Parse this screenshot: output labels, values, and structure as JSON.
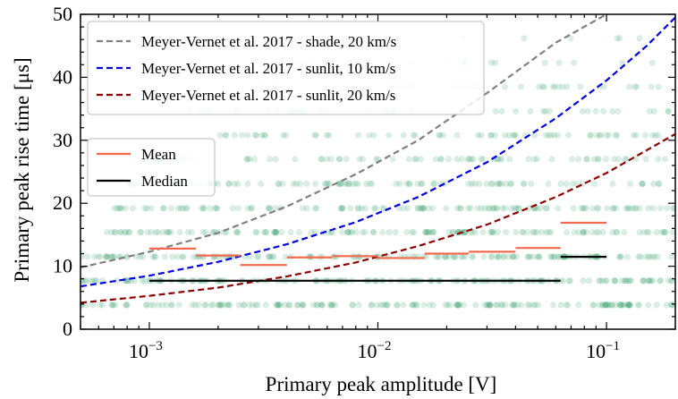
{
  "chart_data": {
    "type": "scatter",
    "xlabel": "Primary peak amplitude [V]",
    "ylabel": "Primary peak rise time [μs]",
    "xscale": "log",
    "xlim": [
      0.0005,
      0.2
    ],
    "ylim": [
      0,
      50
    ],
    "x_ticks": [
      {
        "value": 0.001,
        "base": "10",
        "exp": "−3"
      },
      {
        "value": 0.01,
        "base": "10",
        "exp": "−2"
      },
      {
        "value": 0.1,
        "base": "10",
        "exp": "−1"
      }
    ],
    "y_ticks": [
      {
        "value": 0,
        "label": "0"
      },
      {
        "value": 10,
        "label": "10"
      },
      {
        "value": 20,
        "label": "20"
      },
      {
        "value": 30,
        "label": "30"
      },
      {
        "value": 40,
        "label": "40"
      },
      {
        "value": 50,
        "label": "50"
      }
    ],
    "scatter": {
      "color": "#3aa370",
      "opacity": 0.18,
      "rows": [
        {
          "y": 3.85,
          "from": 0.0005,
          "to": 0.2,
          "density": 1.0
        },
        {
          "y": 7.7,
          "from": 0.0005,
          "to": 0.2,
          "density": 1.0
        },
        {
          "y": 11.5,
          "from": 0.0005,
          "to": 0.2,
          "density": 0.95
        },
        {
          "y": 15.4,
          "from": 0.0006,
          "to": 0.2,
          "density": 0.85
        },
        {
          "y": 19.2,
          "from": 0.0007,
          "to": 0.2,
          "density": 0.75
        },
        {
          "y": 23.1,
          "from": 0.0008,
          "to": 0.2,
          "density": 0.65
        },
        {
          "y": 27.0,
          "from": 0.0009,
          "to": 0.2,
          "density": 0.5
        },
        {
          "y": 30.8,
          "from": 0.0017,
          "to": 0.2,
          "density": 0.45
        },
        {
          "y": 34.6,
          "from": 0.0015,
          "to": 0.2,
          "density": 0.3
        },
        {
          "y": 38.5,
          "from": 0.003,
          "to": 0.2,
          "density": 0.25
        },
        {
          "y": 42.3,
          "from": 0.004,
          "to": 0.2,
          "density": 0.15
        },
        {
          "y": 46.2,
          "from": 0.006,
          "to": 0.2,
          "density": 0.1
        }
      ]
    },
    "curves": [
      {
        "name": "Meyer-Vernet et al. 2017 - shade, 20 km/s",
        "color": "#808080",
        "style": "dashed",
        "x": [
          0.0005,
          0.001,
          0.002,
          0.004,
          0.008,
          0.015,
          0.03,
          0.06,
          0.1,
          0.15
        ],
        "y": [
          9.8,
          12.3,
          15.3,
          19.5,
          24.6,
          30.0,
          37.5,
          45.5,
          50.0,
          53.0
        ]
      },
      {
        "name": "Meyer-Vernet et al. 2017 - sunlit, 10 km/s",
        "color": "#0000dd",
        "style": "dashed",
        "x": [
          0.0005,
          0.001,
          0.002,
          0.004,
          0.008,
          0.015,
          0.03,
          0.06,
          0.1,
          0.15,
          0.2
        ],
        "y": [
          6.8,
          8.5,
          10.7,
          13.5,
          17.0,
          21.0,
          26.5,
          33.5,
          39.5,
          45.0,
          49.5
        ]
      },
      {
        "name": "Meyer-Vernet et al. 2017 - sunlit, 20 km/s",
        "color": "#8b0000",
        "style": "dashed",
        "x": [
          0.0005,
          0.001,
          0.002,
          0.004,
          0.008,
          0.015,
          0.03,
          0.06,
          0.1,
          0.2
        ],
        "y": [
          4.2,
          5.3,
          6.6,
          8.4,
          10.6,
          13.2,
          16.6,
          21.0,
          24.8,
          31.0
        ]
      }
    ],
    "steps": [
      {
        "name": "Mean",
        "color": "#f26b4f",
        "segments": [
          {
            "x0": 0.001,
            "x1": 0.0016,
            "y": 12.8
          },
          {
            "x0": 0.0016,
            "x1": 0.0025,
            "y": 11.7
          },
          {
            "x0": 0.0025,
            "x1": 0.004,
            "y": 10.2
          },
          {
            "x0": 0.004,
            "x1": 0.0063,
            "y": 11.4
          },
          {
            "x0": 0.0063,
            "x1": 0.01,
            "y": 11.6
          },
          {
            "x0": 0.01,
            "x1": 0.016,
            "y": 11.3
          },
          {
            "x0": 0.016,
            "x1": 0.025,
            "y": 12.0
          },
          {
            "x0": 0.025,
            "x1": 0.04,
            "y": 12.3
          },
          {
            "x0": 0.04,
            "x1": 0.063,
            "y": 12.9
          },
          {
            "x0": 0.063,
            "x1": 0.1,
            "y": 16.9
          }
        ]
      },
      {
        "name": "Median",
        "color": "#000000",
        "segments": [
          {
            "x0": 0.001,
            "x1": 0.063,
            "y": 7.7
          },
          {
            "x0": 0.063,
            "x1": 0.1,
            "y": 11.5
          }
        ]
      }
    ],
    "legend_curves_placement": "top-left",
    "legend_steps_placement": "center-left",
    "grid": false
  }
}
